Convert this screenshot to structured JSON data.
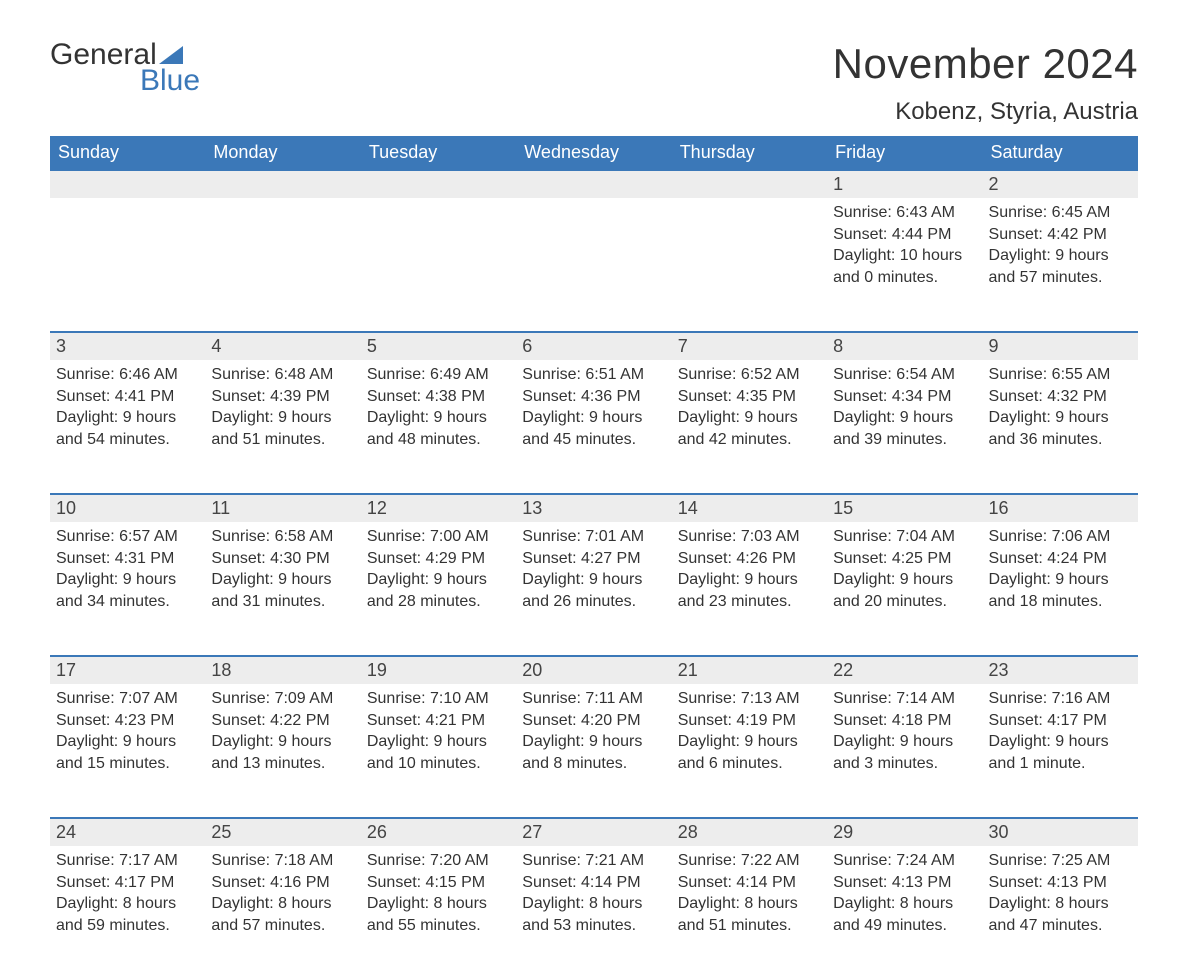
{
  "logo": {
    "textTop": "General",
    "textBottom": "Blue",
    "brandColor": "#3b78b8"
  },
  "title": "November 2024",
  "subtitle": "Kobenz, Styria, Austria",
  "dayHeaders": [
    "Sunday",
    "Monday",
    "Tuesday",
    "Wednesday",
    "Thursday",
    "Friday",
    "Saturday"
  ],
  "colors": {
    "headerBg": "#3b78b8",
    "headerText": "#ffffff",
    "dayNumBg": "#ededed",
    "rowBorder": "#3b78b8",
    "bodyText": "#333333",
    "background": "#ffffff"
  },
  "layout": {
    "type": "calendar-table",
    "columns": 7,
    "weekRows": 5,
    "headerFontSize": 18,
    "dayNumFontSize": 18,
    "detailFontSize": 16,
    "titleFontSize": 42,
    "subtitleFontSize": 24
  },
  "weeks": [
    [
      null,
      null,
      null,
      null,
      null,
      {
        "n": "1",
        "sunrise": "Sunrise: 6:43 AM",
        "sunset": "Sunset: 4:44 PM",
        "day1": "Daylight: 10 hours",
        "day2": "and 0 minutes."
      },
      {
        "n": "2",
        "sunrise": "Sunrise: 6:45 AM",
        "sunset": "Sunset: 4:42 PM",
        "day1": "Daylight: 9 hours",
        "day2": "and 57 minutes."
      }
    ],
    [
      {
        "n": "3",
        "sunrise": "Sunrise: 6:46 AM",
        "sunset": "Sunset: 4:41 PM",
        "day1": "Daylight: 9 hours",
        "day2": "and 54 minutes."
      },
      {
        "n": "4",
        "sunrise": "Sunrise: 6:48 AM",
        "sunset": "Sunset: 4:39 PM",
        "day1": "Daylight: 9 hours",
        "day2": "and 51 minutes."
      },
      {
        "n": "5",
        "sunrise": "Sunrise: 6:49 AM",
        "sunset": "Sunset: 4:38 PM",
        "day1": "Daylight: 9 hours",
        "day2": "and 48 minutes."
      },
      {
        "n": "6",
        "sunrise": "Sunrise: 6:51 AM",
        "sunset": "Sunset: 4:36 PM",
        "day1": "Daylight: 9 hours",
        "day2": "and 45 minutes."
      },
      {
        "n": "7",
        "sunrise": "Sunrise: 6:52 AM",
        "sunset": "Sunset: 4:35 PM",
        "day1": "Daylight: 9 hours",
        "day2": "and 42 minutes."
      },
      {
        "n": "8",
        "sunrise": "Sunrise: 6:54 AM",
        "sunset": "Sunset: 4:34 PM",
        "day1": "Daylight: 9 hours",
        "day2": "and 39 minutes."
      },
      {
        "n": "9",
        "sunrise": "Sunrise: 6:55 AM",
        "sunset": "Sunset: 4:32 PM",
        "day1": "Daylight: 9 hours",
        "day2": "and 36 minutes."
      }
    ],
    [
      {
        "n": "10",
        "sunrise": "Sunrise: 6:57 AM",
        "sunset": "Sunset: 4:31 PM",
        "day1": "Daylight: 9 hours",
        "day2": "and 34 minutes."
      },
      {
        "n": "11",
        "sunrise": "Sunrise: 6:58 AM",
        "sunset": "Sunset: 4:30 PM",
        "day1": "Daylight: 9 hours",
        "day2": "and 31 minutes."
      },
      {
        "n": "12",
        "sunrise": "Sunrise: 7:00 AM",
        "sunset": "Sunset: 4:29 PM",
        "day1": "Daylight: 9 hours",
        "day2": "and 28 minutes."
      },
      {
        "n": "13",
        "sunrise": "Sunrise: 7:01 AM",
        "sunset": "Sunset: 4:27 PM",
        "day1": "Daylight: 9 hours",
        "day2": "and 26 minutes."
      },
      {
        "n": "14",
        "sunrise": "Sunrise: 7:03 AM",
        "sunset": "Sunset: 4:26 PM",
        "day1": "Daylight: 9 hours",
        "day2": "and 23 minutes."
      },
      {
        "n": "15",
        "sunrise": "Sunrise: 7:04 AM",
        "sunset": "Sunset: 4:25 PM",
        "day1": "Daylight: 9 hours",
        "day2": "and 20 minutes."
      },
      {
        "n": "16",
        "sunrise": "Sunrise: 7:06 AM",
        "sunset": "Sunset: 4:24 PM",
        "day1": "Daylight: 9 hours",
        "day2": "and 18 minutes."
      }
    ],
    [
      {
        "n": "17",
        "sunrise": "Sunrise: 7:07 AM",
        "sunset": "Sunset: 4:23 PM",
        "day1": "Daylight: 9 hours",
        "day2": "and 15 minutes."
      },
      {
        "n": "18",
        "sunrise": "Sunrise: 7:09 AM",
        "sunset": "Sunset: 4:22 PM",
        "day1": "Daylight: 9 hours",
        "day2": "and 13 minutes."
      },
      {
        "n": "19",
        "sunrise": "Sunrise: 7:10 AM",
        "sunset": "Sunset: 4:21 PM",
        "day1": "Daylight: 9 hours",
        "day2": "and 10 minutes."
      },
      {
        "n": "20",
        "sunrise": "Sunrise: 7:11 AM",
        "sunset": "Sunset: 4:20 PM",
        "day1": "Daylight: 9 hours",
        "day2": "and 8 minutes."
      },
      {
        "n": "21",
        "sunrise": "Sunrise: 7:13 AM",
        "sunset": "Sunset: 4:19 PM",
        "day1": "Daylight: 9 hours",
        "day2": "and 6 minutes."
      },
      {
        "n": "22",
        "sunrise": "Sunrise: 7:14 AM",
        "sunset": "Sunset: 4:18 PM",
        "day1": "Daylight: 9 hours",
        "day2": "and 3 minutes."
      },
      {
        "n": "23",
        "sunrise": "Sunrise: 7:16 AM",
        "sunset": "Sunset: 4:17 PM",
        "day1": "Daylight: 9 hours",
        "day2": "and 1 minute."
      }
    ],
    [
      {
        "n": "24",
        "sunrise": "Sunrise: 7:17 AM",
        "sunset": "Sunset: 4:17 PM",
        "day1": "Daylight: 8 hours",
        "day2": "and 59 minutes."
      },
      {
        "n": "25",
        "sunrise": "Sunrise: 7:18 AM",
        "sunset": "Sunset: 4:16 PM",
        "day1": "Daylight: 8 hours",
        "day2": "and 57 minutes."
      },
      {
        "n": "26",
        "sunrise": "Sunrise: 7:20 AM",
        "sunset": "Sunset: 4:15 PM",
        "day1": "Daylight: 8 hours",
        "day2": "and 55 minutes."
      },
      {
        "n": "27",
        "sunrise": "Sunrise: 7:21 AM",
        "sunset": "Sunset: 4:14 PM",
        "day1": "Daylight: 8 hours",
        "day2": "and 53 minutes."
      },
      {
        "n": "28",
        "sunrise": "Sunrise: 7:22 AM",
        "sunset": "Sunset: 4:14 PM",
        "day1": "Daylight: 8 hours",
        "day2": "and 51 minutes."
      },
      {
        "n": "29",
        "sunrise": "Sunrise: 7:24 AM",
        "sunset": "Sunset: 4:13 PM",
        "day1": "Daylight: 8 hours",
        "day2": "and 49 minutes."
      },
      {
        "n": "30",
        "sunrise": "Sunrise: 7:25 AM",
        "sunset": "Sunset: 4:13 PM",
        "day1": "Daylight: 8 hours",
        "day2": "and 47 minutes."
      }
    ]
  ]
}
